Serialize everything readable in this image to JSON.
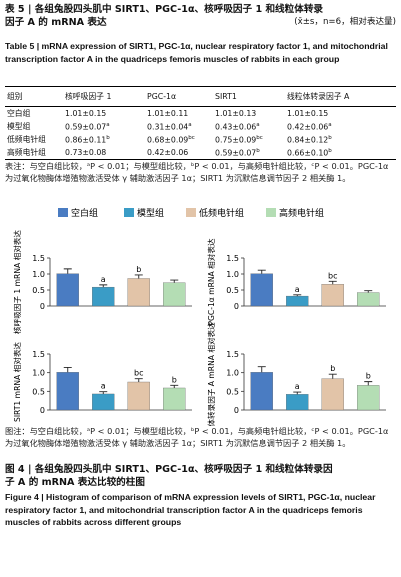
{
  "table_caption": {
    "zh_lines": [
      "表 5 | 各组兔股四头肌中 SIRT1、PGC-1α、核呼吸因子 1 和线粒体转录",
      "因子 A 的 mRNA 表达"
    ],
    "stat": "(x̄±s，n=6，相对表达量)",
    "en": "Table 5 | mRNA expression of SIRT1, PGC-1α, nuclear respiratory factor 1, and mitochondrial transcription factor A in the quadriceps femoris muscles of rabbits in each group"
  },
  "table": {
    "header": [
      "组别",
      "核呼吸因子 1",
      "PGC-1α",
      "SIRT1",
      "线粒体转录因子 A"
    ],
    "rows": [
      [
        "空白组",
        {
          "value": "1.01±0.15"
        },
        {
          "value": "1.01±0.11"
        },
        {
          "value": "1.01±0.13"
        },
        {
          "value": "1.01±0.15"
        }
      ],
      [
        "模型组",
        {
          "value": "0.59±0.07",
          "sup": "a"
        },
        {
          "value": "0.31±0.04",
          "sup": "a"
        },
        {
          "value": "0.43±0.06",
          "sup": "a"
        },
        {
          "value": "0.42±0.06",
          "sup": "a"
        }
      ],
      [
        "低频电针组",
        {
          "value": "0.86±0.11",
          "sup": "b"
        },
        {
          "value": "0.68±0.09",
          "sup": "bc"
        },
        {
          "value": "0.75±0.09",
          "sup": "bc"
        },
        {
          "value": "0.84±0.12",
          "sup": "b"
        }
      ],
      [
        "高频电针组",
        {
          "value": "0.73±0.08"
        },
        {
          "value": "0.42±0.06"
        },
        {
          "value": "0.59±0.07",
          "sup": "b"
        },
        {
          "value": "0.66±0.10",
          "sup": "b"
        }
      ]
    ]
  },
  "table_note": "表注：与空白组比较，ᵃP < 0.01；与模型组比较，ᵇP < 0.01，与高频电针组比较，ᶜP < 0.01。PGC-1α 为过氧化物酶体增殖物激活受体 γ 辅助激活因子 1α；SIRT1 为沉默信息调节因子 2 相关酶 1。",
  "figure": {
    "legend": [
      {
        "name": "空白组",
        "color": "#4a7cc2"
      },
      {
        "name": "模型组",
        "color": "#3a9cc6"
      },
      {
        "name": "低频电针组",
        "color": "#e2c4a8"
      },
      {
        "name": "高频电针组",
        "color": "#b4ddb4"
      }
    ]
  },
  "chart_data": [
    {
      "type": "bar",
      "ylabel": "核呼吸因子 1 mRNA 相对表达",
      "values": [
        1.01,
        0.59,
        0.86,
        0.73
      ],
      "errors": [
        0.15,
        0.07,
        0.11,
        0.08
      ],
      "annotations": [
        null,
        "a",
        "b",
        null
      ],
      "ylim": [
        0,
        1.5
      ],
      "yticks": [
        0,
        0.5,
        {
          "value": 1,
          "label": "1.0"
        },
        1.5
      ]
    },
    {
      "type": "bar",
      "ylabel": "PGC-1α mRNA 相对表达",
      "values": [
        1.01,
        0.31,
        0.68,
        0.42
      ],
      "errors": [
        0.11,
        0.04,
        0.09,
        0.06
      ],
      "annotations": [
        null,
        "a",
        "bc",
        null
      ],
      "ylim": [
        0,
        1.5
      ],
      "yticks": [
        0,
        0.5,
        {
          "value": 1,
          "label": "1.0"
        },
        1.5
      ]
    },
    {
      "type": "bar",
      "ylabel": "SIRT1 mRNA 相对表达",
      "values": [
        1.01,
        0.43,
        0.75,
        0.59
      ],
      "errors": [
        0.13,
        0.06,
        0.09,
        0.07
      ],
      "annotations": [
        null,
        "a",
        "bc",
        "b"
      ],
      "ylim": [
        0,
        1.5
      ],
      "yticks": [
        0,
        0.5,
        {
          "value": 1,
          "label": "1.0"
        },
        1.5
      ]
    },
    {
      "type": "bar",
      "ylabel": "线粒体转录因子 A mRNA 相对表达",
      "values": [
        1.01,
        0.42,
        0.84,
        0.66
      ],
      "errors": [
        0.15,
        0.06,
        0.12,
        0.1
      ],
      "annotations": [
        null,
        "a",
        "b",
        "b"
      ],
      "ylim": [
        0,
        1.5
      ],
      "yticks": [
        0,
        0.5,
        {
          "value": 1,
          "label": "1.0"
        },
        1.5
      ]
    }
  ],
  "figure_note": "图注：与空白组比较，ᵃP < 0.01；与模型组比较，ᵇP < 0.01，与高频电针组比较，ᶜP < 0.01。PGC-1α 为过氧化物酶体增殖物激活受体 γ 辅助激活因子 1α；SIRT1 为沉默信息调节因子 2 相关酶 1。",
  "figure_caption": {
    "zh_lines": [
      "图 4 | 各组兔股四头肌中 SIRT1、PGC-1α、核呼吸因子 1 和线粒体转录因",
      "子 A 的 mRNA 表达比较的柱图"
    ],
    "en": "Figure 4 | Histogram of comparison of mRNA expression levels of SIRT1, PGC-1α, nuclear respiratory factor 1, and mitochondrial transcription factor A in the quadriceps femoris muscles of rabbits across different groups"
  }
}
